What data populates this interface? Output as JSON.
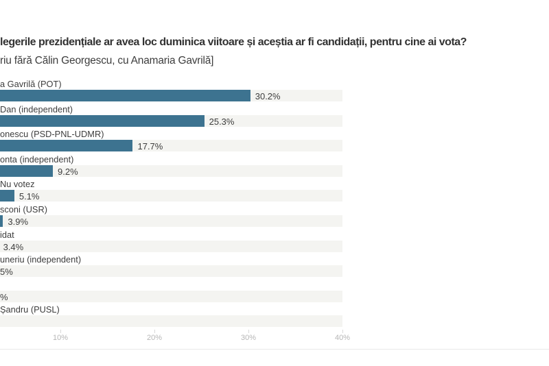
{
  "chart_data": {
    "type": "bar",
    "orientation": "horizontal",
    "title": "legerile prezidențiale ar avea loc duminica viitoare și aceștia ar fi candidații, pentru cine ai vota?",
    "subtitle": "riu fără Călin Georgescu, cu Anamaria Gavrilă]",
    "note": "chart is cropped at the left edge; labels and small values are truncated",
    "rows": [
      {
        "label": "a Gavrilă (POT)",
        "value_label": "30.2%",
        "pct": 30.2
      },
      {
        "label": "Dan (independent)",
        "value_label": "25.3%",
        "pct": 25.3
      },
      {
        "label": "onescu (PSD-PNL-UDMR)",
        "value_label": "17.7%",
        "pct": 17.7
      },
      {
        "label": "onta (independent)",
        "value_label": "9.2%",
        "pct": 9.2
      },
      {
        "label": "Nu votez",
        "value_label": "5.1%",
        "pct": 5.1
      },
      {
        "label": "sconi (USR)",
        "value_label": "3.9%",
        "pct": 3.9
      },
      {
        "label": "idat",
        "value_label": "3.4%",
        "pct": 3.4
      },
      {
        "label": "uneriu (independent)",
        "value_label": "5%",
        "pct": null
      },
      {
        "label": "",
        "value_label": "%",
        "pct": null
      },
      {
        "label": "Șandru (PUSL)",
        "value_label": "",
        "pct": null
      }
    ],
    "x_ticks": [
      {
        "pct": 10,
        "label": "10%"
      },
      {
        "pct": 20,
        "label": "20%"
      },
      {
        "pct": 30,
        "label": "30%"
      },
      {
        "pct": 40,
        "label": "40%"
      }
    ],
    "xlim_visible": [
      0,
      40
    ],
    "grid": "off",
    "legend": "none",
    "colors": {
      "bar": "#3d7390",
      "track": "#f4f4f1",
      "text": "#3d3d3d",
      "tick_text": "#b6b6b6",
      "divider": "#e9e9e9"
    }
  }
}
